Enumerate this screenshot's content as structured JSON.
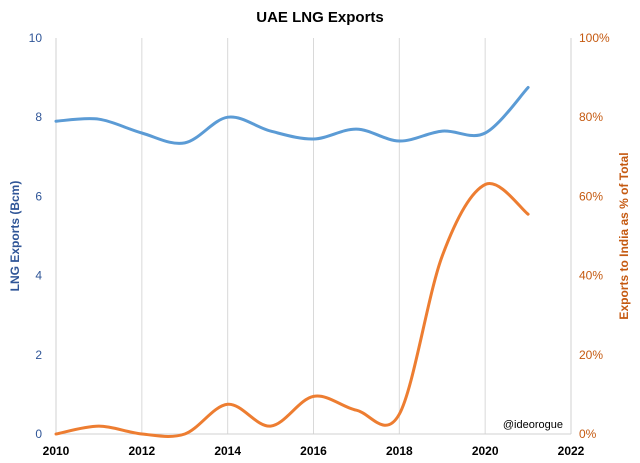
{
  "chart_data": {
    "type": "line",
    "title": "UAE LNG Exports",
    "xlim": [
      2010,
      2022
    ],
    "x_ticks": [
      "2010",
      "2012",
      "2014",
      "2016",
      "2018",
      "2020",
      "2022"
    ],
    "y_left": {
      "label": "LNG Exports (Bcm)",
      "ylim": [
        0,
        10
      ],
      "ticks": [
        "0",
        "2",
        "4",
        "6",
        "8",
        "10"
      ]
    },
    "y_right": {
      "label": "Exports to India as % of Total",
      "ylim": [
        0,
        100
      ],
      "ticks": [
        "0%",
        "20%",
        "40%",
        "60%",
        "80%",
        "100%"
      ]
    },
    "grid": "vertical",
    "annotation": "@ideorogue",
    "series": [
      {
        "axis": "left",
        "color": "#5b9bd5",
        "x": [
          2010,
          2011,
          2012,
          2013,
          2014,
          2015,
          2016,
          2017,
          2018,
          2019,
          2020,
          2021
        ],
        "values": [
          7.9,
          7.95,
          7.6,
          7.35,
          8.0,
          7.65,
          7.45,
          7.7,
          7.4,
          7.65,
          7.6,
          8.75
        ]
      },
      {
        "axis": "right",
        "color": "#ed7d31",
        "x": [
          2010,
          2011,
          2012,
          2013,
          2014,
          2015,
          2016,
          2017,
          2018,
          2019,
          2020,
          2021
        ],
        "values": [
          0,
          2,
          0,
          0,
          7.5,
          2,
          9.5,
          6,
          5,
          45,
          63,
          55.5
        ]
      }
    ]
  }
}
